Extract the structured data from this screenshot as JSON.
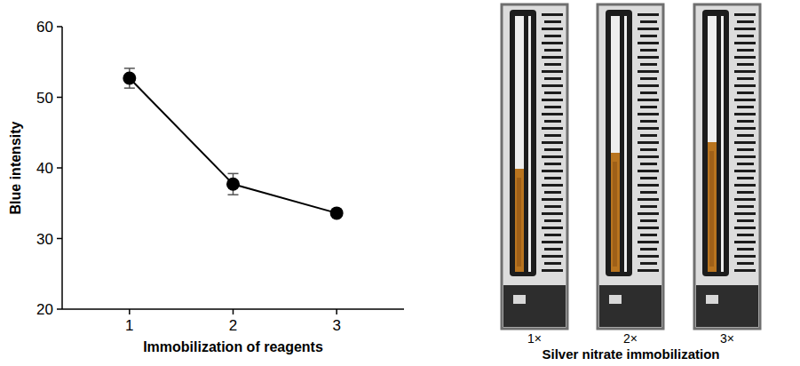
{
  "chart_data": {
    "type": "line",
    "x_label": "Immobilization of reagents",
    "y_label": "Blue intensity",
    "categories": [
      "1",
      "2",
      "3"
    ],
    "values": [
      52.7,
      37.7,
      33.6
    ],
    "errors": [
      1.4,
      1.5,
      0.3
    ],
    "ylim": [
      20,
      60
    ],
    "yticks": [
      20,
      30,
      40,
      50,
      60
    ],
    "color": "#000000",
    "marker": "circle",
    "line_style": "solid",
    "grid": false
  },
  "photo_panel": {
    "title": "Silver nitrate immobilization",
    "labels": [
      "1×",
      "2×",
      "3×"
    ]
  }
}
